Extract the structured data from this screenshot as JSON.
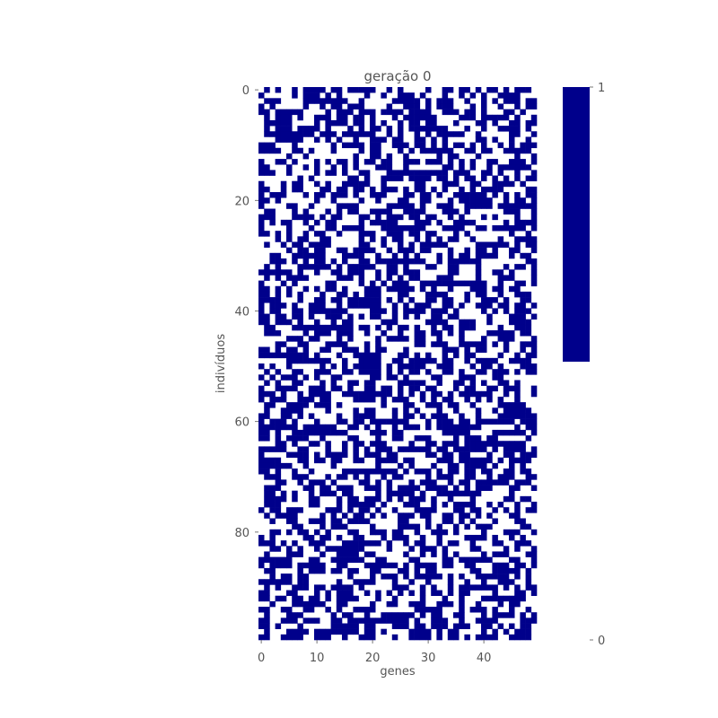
{
  "chart_data": {
    "type": "heatmap",
    "title": "geração 0",
    "xlabel": "genes",
    "ylabel": "indivíduos",
    "x_ticks": [
      0,
      10,
      20,
      30,
      40
    ],
    "y_ticks": [
      0,
      20,
      40,
      60,
      80
    ],
    "n_genes": 50,
    "n_individuals": 100,
    "value_range": [
      0,
      1
    ],
    "colorbar": {
      "ticks": [
        1,
        0
      ],
      "color_for_1": "#00008b",
      "color_for_0": "#ffffff"
    },
    "grid": false,
    "matrix_values": "random binary (0/1) matrix of shape 100 individuals × 50 genes, roughly half ones"
  }
}
